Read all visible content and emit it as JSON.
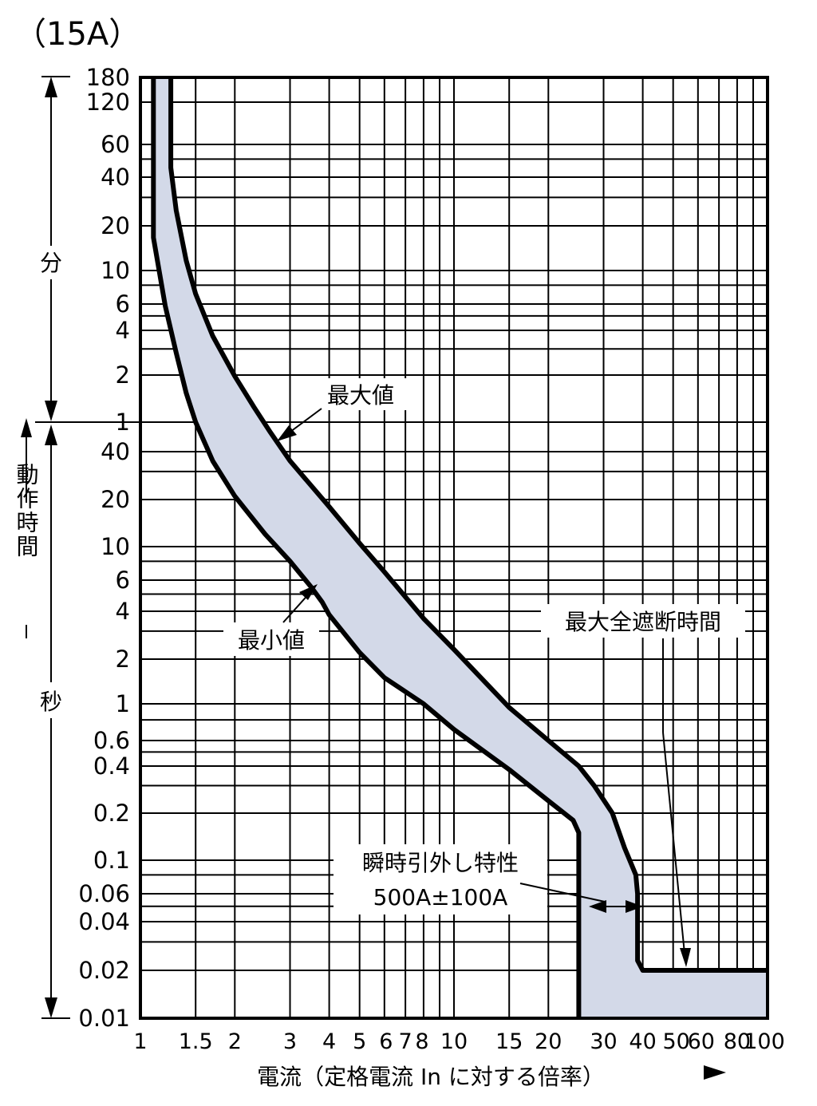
{
  "chart_data": {
    "type": "area",
    "title": "（15A）",
    "xlabel": "電流（定格電流 In に対する倍率）",
    "x_scale": "log",
    "y_scale": "log",
    "xlim": [
      1,
      100
    ],
    "ylim_seconds": [
      0.01,
      10800
    ],
    "x_tick_labels": [
      {
        "value": 1,
        "label": "1"
      },
      {
        "value": 1.5,
        "label": "1.5"
      },
      {
        "value": 2,
        "label": "2"
      },
      {
        "value": 3,
        "label": "3"
      },
      {
        "value": 4,
        "label": "4"
      },
      {
        "value": 5,
        "label": "5"
      },
      {
        "value": 6,
        "label": "6"
      },
      {
        "value": 7,
        "label": "7"
      },
      {
        "value": 8,
        "label": "8"
      },
      {
        "value": 10,
        "label": "10"
      },
      {
        "value": 15,
        "label": "15"
      },
      {
        "value": 20,
        "label": "20"
      },
      {
        "value": 30,
        "label": "30"
      },
      {
        "value": 40,
        "label": "40"
      },
      {
        "value": 50,
        "label": "50"
      },
      {
        "value": 60,
        "label": "60"
      },
      {
        "value": 80,
        "label": "80"
      },
      {
        "value": 100,
        "label": "100"
      }
    ],
    "x_grid": [
      1,
      1.5,
      2,
      3,
      4,
      5,
      6,
      7,
      8,
      9,
      10,
      15,
      20,
      30,
      40,
      50,
      60,
      70,
      80,
      90,
      100
    ],
    "y_tick_labels": [
      {
        "seconds": 10800,
        "label": "180"
      },
      {
        "seconds": 7200,
        "label": "120"
      },
      {
        "seconds": 3600,
        "label": "60"
      },
      {
        "seconds": 2400,
        "label": "40"
      },
      {
        "seconds": 1200,
        "label": "20"
      },
      {
        "seconds": 600,
        "label": "10"
      },
      {
        "seconds": 360,
        "label": "6"
      },
      {
        "seconds": 240,
        "label": "4"
      },
      {
        "seconds": 120,
        "label": "2"
      },
      {
        "seconds": 60,
        "label": "1"
      },
      {
        "seconds": 40,
        "label": "40"
      },
      {
        "seconds": 20,
        "label": "20"
      },
      {
        "seconds": 10,
        "label": "10"
      },
      {
        "seconds": 6,
        "label": "6"
      },
      {
        "seconds": 4,
        "label": "4"
      },
      {
        "seconds": 2,
        "label": "2"
      },
      {
        "seconds": 1,
        "label": "1"
      },
      {
        "seconds": 0.6,
        "label": "0.6"
      },
      {
        "seconds": 0.4,
        "label": "0.4"
      },
      {
        "seconds": 0.2,
        "label": "0.2"
      },
      {
        "seconds": 0.1,
        "label": "0.1"
      },
      {
        "seconds": 0.06,
        "label": "0.06"
      },
      {
        "seconds": 0.04,
        "label": "0.04"
      },
      {
        "seconds": 0.02,
        "label": "0.02"
      },
      {
        "seconds": 0.01,
        "label": "0.01"
      }
    ],
    "y_grid": [
      10800,
      7200,
      3600,
      3000,
      2400,
      1800,
      1200,
      600,
      480,
      360,
      300,
      240,
      180,
      120,
      60,
      40,
      30,
      20,
      10,
      8,
      6,
      5,
      4,
      3,
      2,
      1,
      0.8,
      0.6,
      0.5,
      0.4,
      0.3,
      0.2,
      0.1,
      0.08,
      0.06,
      0.05,
      0.04,
      0.03,
      0.02,
      0.01
    ],
    "y_unit_labels": {
      "minutes": "分",
      "operating_time": "動作時間",
      "seconds": "秒"
    },
    "series": [
      {
        "name": "最大値",
        "points": [
          [
            1.25,
            10800
          ],
          [
            1.25,
            2700
          ],
          [
            1.3,
            1500
          ],
          [
            1.4,
            700
          ],
          [
            1.5,
            420
          ],
          [
            1.7,
            220
          ],
          [
            2.0,
            118
          ],
          [
            2.3,
            75
          ],
          [
            2.6,
            52
          ],
          [
            3.0,
            35
          ],
          [
            4.0,
            18
          ],
          [
            5.0,
            10.5
          ],
          [
            6.0,
            6.8
          ],
          [
            8.0,
            3.6
          ],
          [
            10.0,
            2.3
          ],
          [
            15.0,
            0.95
          ],
          [
            20.0,
            0.6
          ],
          [
            25.0,
            0.4
          ],
          [
            28.0,
            0.3
          ],
          [
            32.0,
            0.2
          ],
          [
            35.0,
            0.12
          ],
          [
            38.0,
            0.08
          ],
          [
            38.5,
            0.06
          ],
          [
            38.5,
            0.023
          ],
          [
            40.0,
            0.02
          ],
          [
            100,
            0.02
          ]
        ]
      },
      {
        "name": "最小値",
        "points": [
          [
            1.1,
            10800
          ],
          [
            1.1,
            1000
          ],
          [
            1.2,
            350
          ],
          [
            1.3,
            170
          ],
          [
            1.4,
            92
          ],
          [
            1.5,
            60
          ],
          [
            1.7,
            35
          ],
          [
            2.0,
            21
          ],
          [
            2.5,
            12
          ],
          [
            3.0,
            8.0
          ],
          [
            3.5,
            5.5
          ],
          [
            3.8,
            4.5
          ],
          [
            4.0,
            3.8
          ],
          [
            5.0,
            2.2
          ],
          [
            6.0,
            1.5
          ],
          [
            8.0,
            1.0
          ],
          [
            10.0,
            0.7
          ],
          [
            15.0,
            0.38
          ],
          [
            20.0,
            0.24
          ],
          [
            24.0,
            0.18
          ],
          [
            25.0,
            0.15
          ],
          [
            25.0,
            0.01
          ]
        ]
      }
    ],
    "annotations": {
      "max_label": "最大値",
      "min_label": "最小値",
      "max_interrupt_label": "最大全遮断時間",
      "instant_trip_label": "瞬時引外し特性",
      "instant_trip_value": "500A±100A"
    },
    "colors": {
      "band_fill": "#d3d9e8",
      "curve": "#000000",
      "grid": "#000000"
    },
    "grid": true,
    "legend": "none"
  }
}
